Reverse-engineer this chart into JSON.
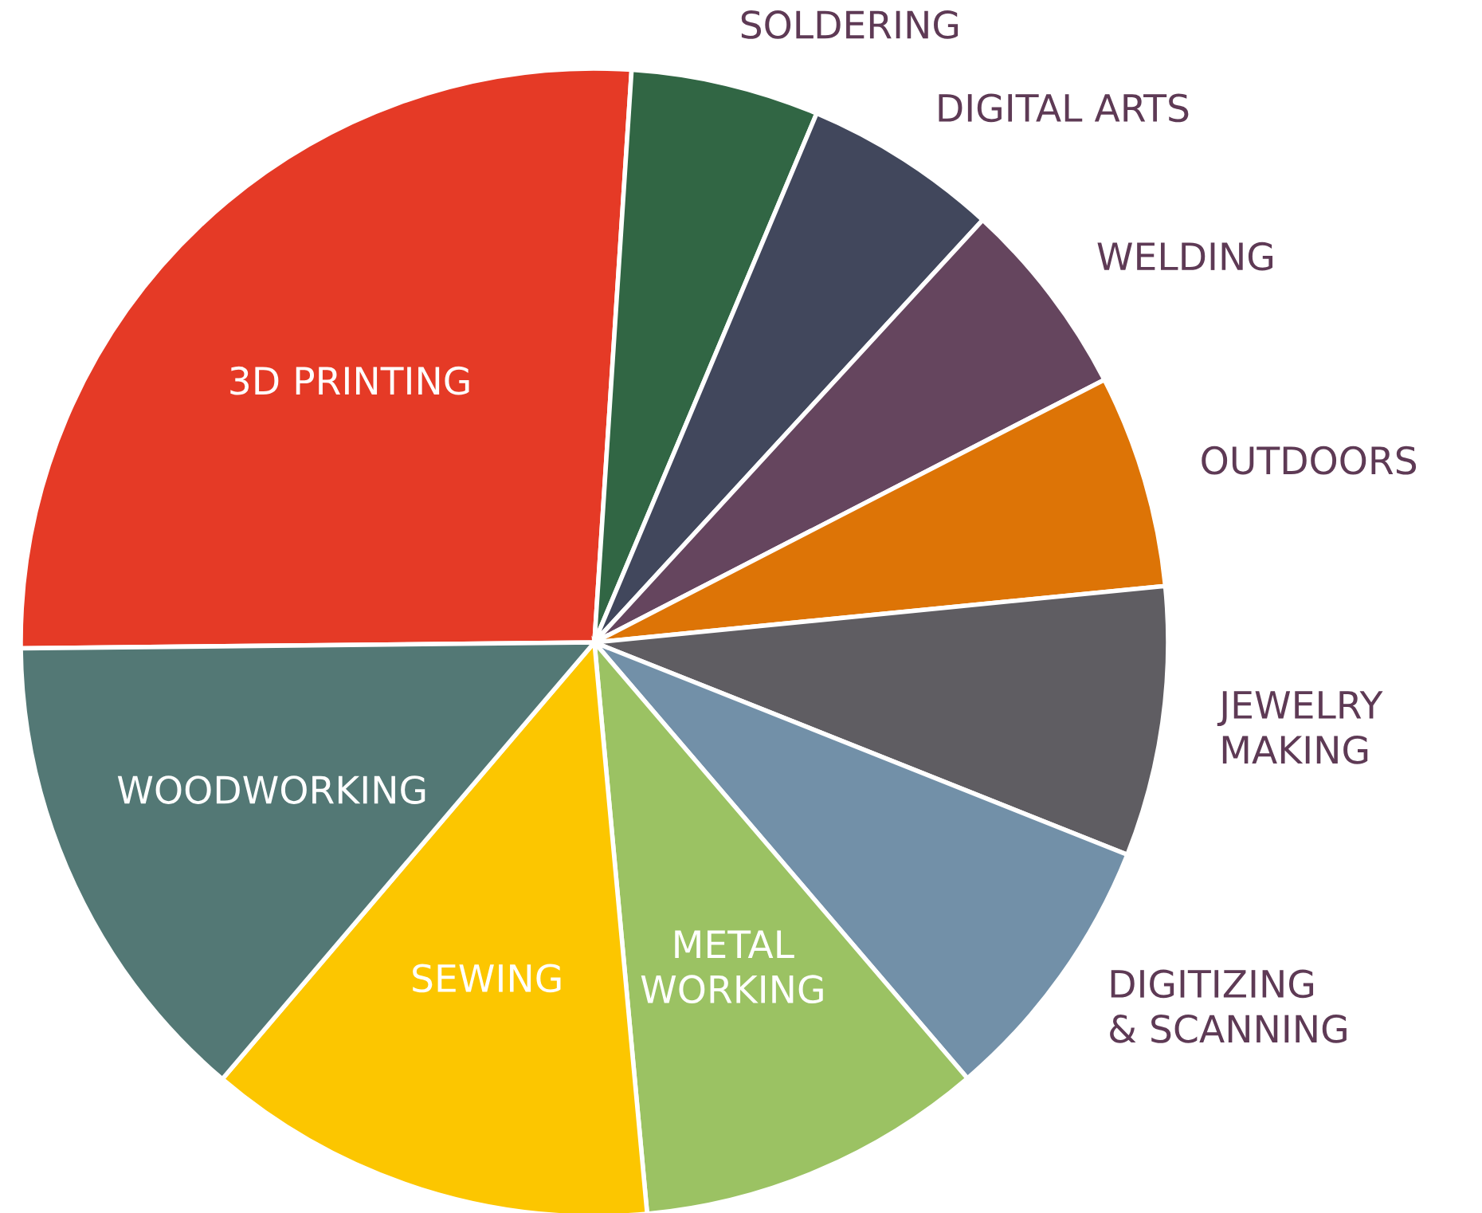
{
  "chart_data": {
    "type": "pie",
    "categories": [
      "3D PRINTING",
      "SOLDERING",
      "DIGITAL ARTS",
      "WELDING",
      "OUTDOORS",
      "JEWELRY\nMAKING",
      "DIGITIZING\n& SCANNING",
      "METAL\nWORKING",
      "SEWING",
      "WOODWORKING"
    ],
    "values": [
      26.2,
      5.3,
      5.5,
      5.6,
      6.0,
      7.6,
      7.7,
      9.8,
      12.7,
      13.6
    ],
    "colors": [
      "#e53a26",
      "#316644",
      "#41475c",
      "#65455e",
      "#dd7406",
      "#5f5d62",
      "#7290a8",
      "#9bc263",
      "#fcc600",
      "#537875"
    ]
  }
}
